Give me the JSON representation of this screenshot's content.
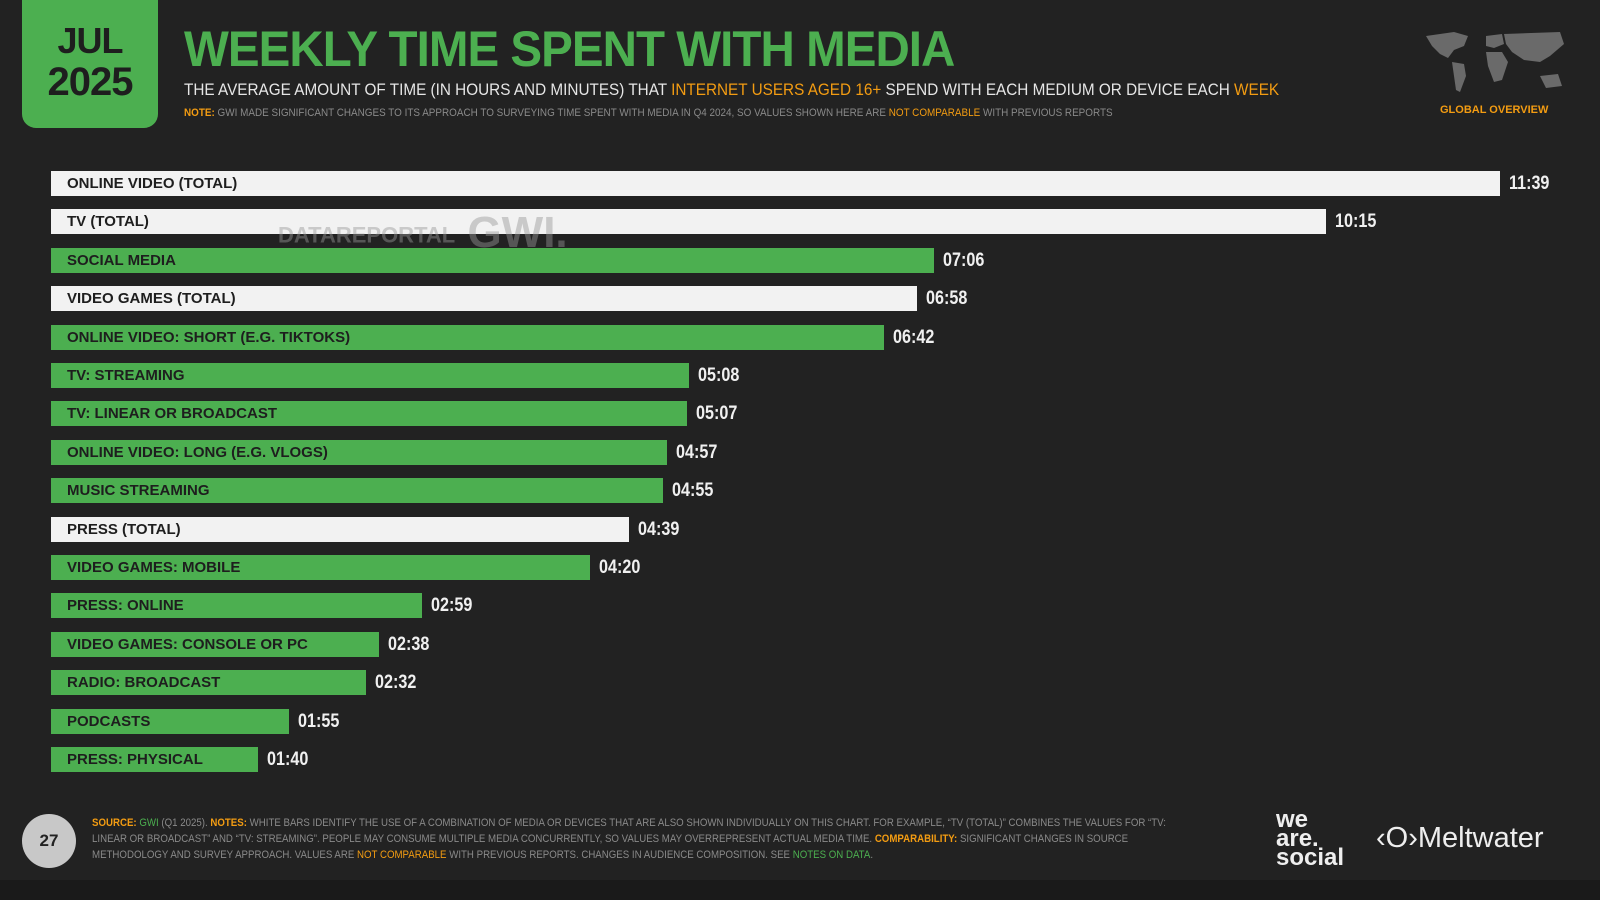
{
  "header": {
    "month": "JUL",
    "year": "2025",
    "title": "WEEKLY TIME SPENT WITH MEDIA",
    "subtitle_parts": [
      "THE AVERAGE AMOUNT OF TIME (IN HOURS AND MINUTES) THAT ",
      "INTERNET USERS AGED 16+",
      " SPEND WITH EACH MEDIUM OR DEVICE EACH ",
      "WEEK"
    ],
    "note_label": "NOTE:",
    "note_text": " GWI MADE SIGNIFICANT CHANGES TO ITS APPROACH TO SURVEYING TIME SPENT WITH MEDIA IN Q4 2024, SO VALUES SHOWN HERE ARE ",
    "note_highlight": "NOT COMPARABLE",
    "note_end": " WITH PREVIOUS REPORTS",
    "region": "GLOBAL OVERVIEW"
  },
  "watermark": {
    "left": "DATAREPORTAL",
    "right": "GWI."
  },
  "colors": {
    "green": "#4caf50",
    "white": "#f2f2f2",
    "orange": "#f39c12",
    "background": "#222222"
  },
  "chart_data": {
    "type": "bar",
    "orientation": "horizontal",
    "unit": "hours:minutes per week",
    "categories": [
      "ONLINE VIDEO (TOTAL)",
      "TV (TOTAL)",
      "SOCIAL MEDIA",
      "VIDEO GAMES (TOTAL)",
      "ONLINE VIDEO: SHORT (E.G. TIKTOKS)",
      "TV: STREAMING",
      "TV: LINEAR OR BROADCAST",
      "ONLINE VIDEO: LONG (E.G. VLOGS)",
      "MUSIC STREAMING",
      "PRESS (TOTAL)",
      "VIDEO GAMES: MOBILE",
      "PRESS: ONLINE",
      "VIDEO GAMES: CONSOLE OR PC",
      "RADIO: BROADCAST",
      "PODCASTS",
      "PRESS: PHYSICAL"
    ],
    "values": [
      "11:39",
      "10:15",
      "07:06",
      "06:58",
      "06:42",
      "05:08",
      "05:07",
      "04:57",
      "04:55",
      "04:39",
      "04:20",
      "02:59",
      "02:38",
      "02:32",
      "01:55",
      "01:40"
    ],
    "bar_colors": [
      "white",
      "white",
      "green",
      "white",
      "green",
      "green",
      "green",
      "green",
      "green",
      "white",
      "green",
      "green",
      "green",
      "green",
      "green",
      "green"
    ]
  },
  "footer": {
    "page": "27",
    "source_parts": [
      [
        "SOURCE:",
        "or b"
      ],
      [
        " ",
        ""
      ],
      [
        "GWI",
        "gr"
      ],
      [
        " (Q1 2025). ",
        ""
      ],
      [
        "NOTES:",
        "or b"
      ],
      [
        " WHITE BARS IDENTIFY THE USE OF A COMBINATION OF MEDIA OR DEVICES THAT ARE ALSO SHOWN INDIVIDUALLY ON THIS CHART. FOR EXAMPLE, “TV (TOTAL)” COMBINES THE VALUES FOR “TV: LINEAR OR BROADCAST” AND “TV: STREAMING”. PEOPLE MAY CONSUME MULTIPLE MEDIA CONCURRENTLY, SO VALUES MAY OVERREPRESENT ACTUAL MEDIA TIME. ",
        ""
      ],
      [
        "COMPARABILITY:",
        "or b"
      ],
      [
        " SIGNIFICANT CHANGES IN SOURCE METHODOLOGY AND SURVEY APPROACH. VALUES ARE ",
        ""
      ],
      [
        "NOT COMPARABLE",
        "or"
      ],
      [
        " WITH PREVIOUS REPORTS. CHANGES IN AUDIENCE COMPOSITION. SEE ",
        ""
      ],
      [
        "NOTES ON DATA",
        "gr"
      ],
      [
        ".",
        ""
      ]
    ],
    "logo1": "we are. social",
    "logo2": "Meltwater"
  }
}
